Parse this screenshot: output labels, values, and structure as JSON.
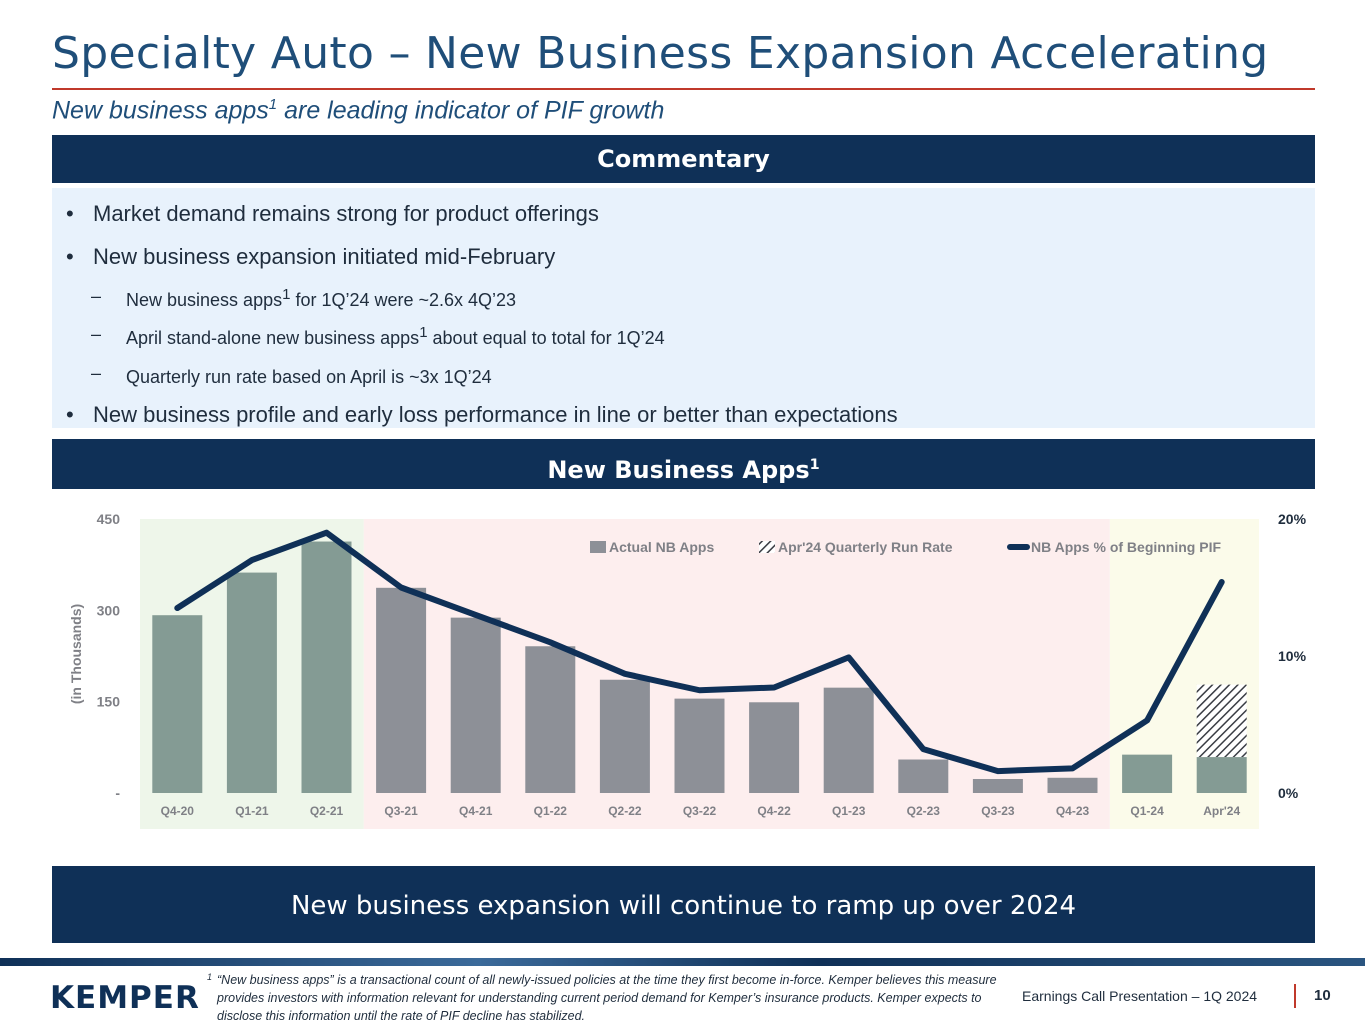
{
  "title": "Specialty Auto – New Business Expansion Accelerating",
  "subtitle": {
    "text": "New business apps",
    "sup": "1",
    "rest": " are leading indicator of PIF growth"
  },
  "commentary": {
    "header": "Commentary",
    "bullets": [
      "Market demand remains strong for product offerings",
      "New business expansion initiated mid-February",
      "New business profile and early loss performance in line or better than expectations"
    ],
    "sub_bullets": [
      {
        "pre": "New business apps",
        "sup": "1",
        "post": " for 1Q’24 were ~2.6x 4Q’23"
      },
      {
        "pre": "April stand-alone new business apps",
        "sup": "1",
        "post": "  about equal to total for 1Q’24"
      },
      {
        "pre": "Quarterly run rate based on April is ~3x 1Q’24",
        "sup": "",
        "post": ""
      }
    ],
    "bullet_mark": "•",
    "dash_mark": "–"
  },
  "chart_header": {
    "text": "New Business Apps",
    "sup": "1"
  },
  "chart_data": {
    "type": "bar",
    "categories": [
      "Q4-20",
      "Q1-21",
      "Q2-21",
      "Q3-21",
      "Q4-21",
      "Q1-22",
      "Q2-22",
      "Q3-22",
      "Q4-22",
      "Q1-23",
      "Q2-23",
      "Q3-23",
      "Q4-23",
      "Q1-24",
      "Apr'24"
    ],
    "series": [
      {
        "name": "Actual NB Apps",
        "type": "bar",
        "axis": "left",
        "values": [
          292,
          362,
          413,
          337,
          288,
          241,
          186,
          155,
          149,
          173,
          55,
          23,
          25,
          63,
          59
        ]
      },
      {
        "name": "Apr'24 Quarterly Run Rate",
        "type": "bar-hatched",
        "axis": "left",
        "values": [
          null,
          null,
          null,
          null,
          null,
          null,
          null,
          null,
          null,
          null,
          null,
          null,
          null,
          null,
          178
        ]
      },
      {
        "name": "NB Apps % of Beginning PIF",
        "type": "line",
        "axis": "right",
        "values": [
          13.5,
          17.0,
          19.0,
          15.0,
          13.0,
          11.0,
          8.7,
          7.5,
          7.7,
          9.9,
          3.2,
          1.6,
          1.8,
          5.3,
          15.4
        ]
      }
    ],
    "ylabel": "(in Thousands)",
    "ylim": [
      0,
      450
    ],
    "y_ticks": [
      0,
      150,
      300,
      450
    ],
    "y_tick_labels": [
      "-",
      "150",
      "300",
      "450"
    ],
    "y2lim": [
      0,
      20
    ],
    "y2_ticks": [
      0,
      10,
      20
    ],
    "y2_tick_labels": [
      "0%",
      "10%",
      "20%"
    ],
    "period_shading": [
      {
        "from": "Q4-20",
        "to": "Q2-21",
        "color": "#eef6ea"
      },
      {
        "from": "Q3-21",
        "to": "Q4-23",
        "color": "#fdeeee"
      },
      {
        "from": "Q1-24",
        "to": "Apr'24",
        "color": "#fbfbea"
      }
    ],
    "colors": {
      "bar_green": "#849b94",
      "bar_gray": "#8d9097",
      "line": "#0f3057",
      "text": "#7f8086"
    },
    "legend_position": "top-right"
  },
  "banner": "New business expansion will continue to ramp up over 2024",
  "footer": {
    "logo": "KEMPER",
    "footnote_num": "1",
    "footnote": "“New business apps” is a transactional count of all newly-issued policies at the time they first become in-force.  Kemper believes this measure provides investors with information relevant for understanding current period demand for Kemper’s insurance products.  Kemper expects to disclose this information until the rate of PIF decline has stabilized.",
    "presentation": "Earnings Call Presentation – 1Q 2024",
    "page": "10"
  }
}
